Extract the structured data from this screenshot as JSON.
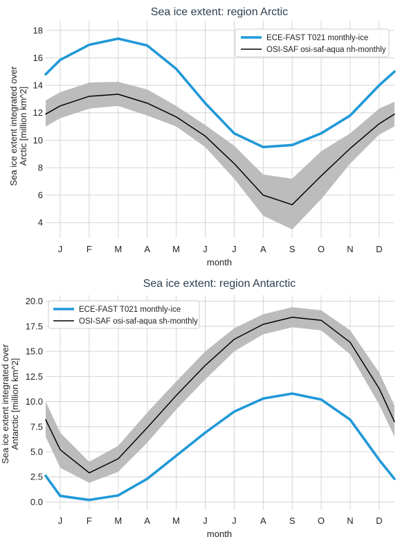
{
  "colors": {
    "model": "#1f98d8",
    "obs": "#000000",
    "band": "#b8b8b8",
    "grid": "#d4d4d4"
  },
  "chart_data": [
    {
      "type": "line",
      "title": "Sea ice extent: region Arctic",
      "xlabel": "month",
      "ylabel_line1": "Sea ice extent integrated over",
      "ylabel_line2": "Arctic [million km^2]",
      "x": [
        "J",
        "F",
        "M",
        "A",
        "M",
        "J",
        "J",
        "A",
        "S",
        "O",
        "N",
        "D"
      ],
      "ylim": [
        2.9,
        18.7
      ],
      "yticks": [
        "4",
        "6",
        "8",
        "10",
        "12",
        "14",
        "16",
        "18"
      ],
      "grid": true,
      "legend_position": "upper-right",
      "series": [
        {
          "name": "ECE-FAST T021 monthly-ice",
          "kind": "model",
          "values": [
            15.85,
            16.95,
            17.4,
            16.9,
            15.2,
            12.7,
            10.5,
            9.5,
            9.65,
            10.5,
            11.8,
            14.0
          ],
          "edge_start": 14.8,
          "edge_end": 15.0
        },
        {
          "name": "OSI-SAF osi-saf-aqua nh-monthly",
          "kind": "obs",
          "values": [
            12.5,
            13.2,
            13.35,
            12.7,
            11.7,
            10.3,
            8.3,
            6.0,
            5.3,
            7.4,
            9.4,
            11.2
          ],
          "upper": [
            13.5,
            14.2,
            14.25,
            13.7,
            12.5,
            11.1,
            9.6,
            7.5,
            7.2,
            9.2,
            10.5,
            12.3
          ],
          "lower": [
            11.6,
            12.3,
            12.5,
            11.8,
            11.0,
            9.5,
            7.2,
            4.5,
            3.5,
            5.7,
            8.3,
            10.4
          ],
          "edge_start": 11.9,
          "edge_end": 11.9,
          "edge_upper_start": 12.9,
          "edge_upper_end": 12.8,
          "edge_lower_start": 11.0,
          "edge_lower_end": 11.0
        }
      ]
    },
    {
      "type": "line",
      "title": "Sea ice extent: region Antarctic",
      "xlabel": "month",
      "ylabel_line1": "Sea ice extent integrated over",
      "ylabel_line2": "Antarctic [million km^2]",
      "x": [
        "J",
        "F",
        "M",
        "A",
        "M",
        "J",
        "J",
        "A",
        "S",
        "O",
        "N",
        "D"
      ],
      "ylim": [
        -0.8,
        20.6
      ],
      "yticks": [
        "0.0",
        "2.5",
        "5.0",
        "7.5",
        "10.0",
        "12.5",
        "15.0",
        "17.5",
        "20.0"
      ],
      "grid": true,
      "legend_position": "upper-left",
      "series": [
        {
          "name": "ECE-FAST T021 monthly-ice",
          "kind": "model",
          "values": [
            0.6,
            0.2,
            0.65,
            2.3,
            4.6,
            6.9,
            9.0,
            10.3,
            10.8,
            10.2,
            8.2,
            4.2
          ],
          "edge_start": 2.6,
          "edge_end": 2.3
        },
        {
          "name": "OSI-SAF osi-saf-aqua sh-monthly",
          "kind": "obs",
          "values": [
            5.2,
            2.9,
            4.3,
            7.4,
            10.6,
            13.6,
            16.2,
            17.7,
            18.4,
            18.1,
            15.9,
            11.3
          ],
          "upper": [
            6.9,
            4.0,
            5.6,
            8.9,
            12.0,
            15.0,
            17.3,
            18.7,
            19.4,
            19.1,
            17.1,
            12.9
          ],
          "lower": [
            3.4,
            1.9,
            3.0,
            5.9,
            9.2,
            12.2,
            15.0,
            16.7,
            17.4,
            17.1,
            14.7,
            9.7
          ],
          "edge_start": 8.2,
          "edge_end": 8.0,
          "edge_upper_start": 10.0,
          "edge_upper_end": 9.6,
          "edge_lower_start": 6.5,
          "edge_lower_end": 6.5
        }
      ]
    }
  ]
}
